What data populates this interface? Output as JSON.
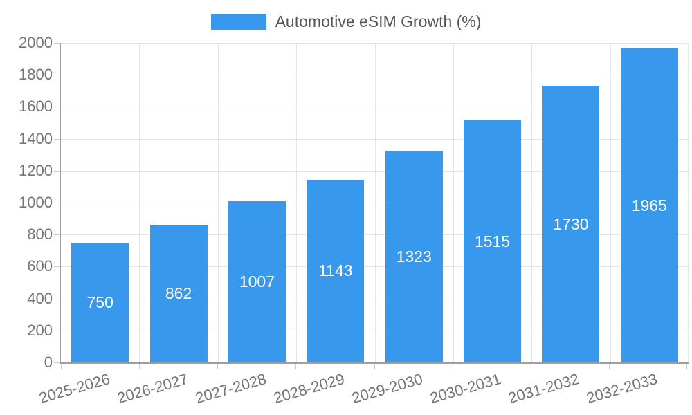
{
  "chart_data": {
    "type": "bar",
    "title": "Automotive eSIM Growth (%)",
    "legend": {
      "label": "Automotive eSIM Growth (%)",
      "position": "top-center",
      "swatch_shape": "rectangle"
    },
    "categories": [
      "2025-2026",
      "2026-2027",
      "2027-2028",
      "2028-2029",
      "2029-2030",
      "2030-2031",
      "2031-2032",
      "2032-2033"
    ],
    "series": [
      {
        "name": "Automotive eSIM Growth (%)",
        "values": [
          750,
          862,
          1007,
          1143,
          1323,
          1515,
          1730,
          1965
        ]
      }
    ],
    "value_labels_shown": true,
    "xlabel": "",
    "ylabel": "",
    "ylim": [
      0,
      2000
    ],
    "ytick_step": 200,
    "yticks": [
      0,
      200,
      400,
      600,
      800,
      1000,
      1200,
      1400,
      1600,
      1800,
      2000
    ],
    "grid": true,
    "x_label_rotation_deg": -16,
    "colors": {
      "bar": "#3898EC",
      "value_label": "#FFFFFF",
      "axis_label": "#757575",
      "legend_text": "#555555",
      "grid_line": "#E4E4E4",
      "axis_line": "#9E9E9E",
      "tick": "#CCCCCC",
      "background": "#FFFFFF"
    }
  }
}
